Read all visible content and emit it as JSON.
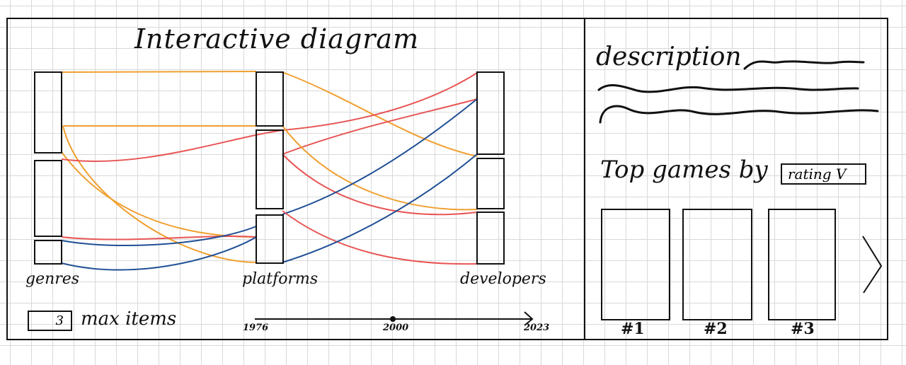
{
  "diagram": {
    "title": "Interactive diagram",
    "columns": [
      "genres",
      "platforms",
      "developers"
    ],
    "max_items": {
      "value": "3",
      "label": "max items"
    },
    "timeline": {
      "start": "1976",
      "mid": "2000",
      "end": "2023"
    }
  },
  "colors": {
    "orange": "#f0a030",
    "red": "#e85555",
    "blue": "#1f4f95",
    "ink": "#111111"
  },
  "sidebar": {
    "description_label": "description",
    "top_games_label": "Top games by",
    "sort_select": "rating V",
    "ranks": [
      "#1",
      "#2",
      "#3"
    ],
    "next_icon": "chevron-right-icon"
  }
}
